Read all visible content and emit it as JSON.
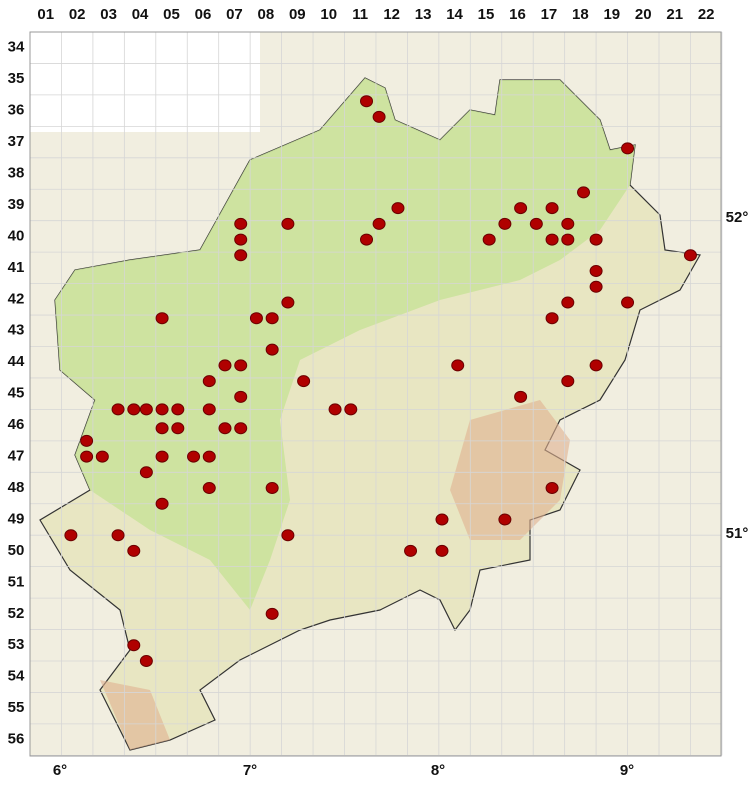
{
  "map": {
    "columns": [
      "01",
      "02",
      "03",
      "04",
      "05",
      "06",
      "07",
      "08",
      "09",
      "10",
      "11",
      "12",
      "13",
      "14",
      "15",
      "16",
      "17",
      "18",
      "19",
      "20",
      "21",
      "22"
    ],
    "rows": [
      "34",
      "35",
      "36",
      "37",
      "38",
      "39",
      "40",
      "41",
      "42",
      "43",
      "44",
      "45",
      "46",
      "47",
      "48",
      "49",
      "50",
      "51",
      "52",
      "53",
      "54",
      "55",
      "56"
    ],
    "longitudes": [
      "6°",
      "7°",
      "8°",
      "9°"
    ],
    "latitudes": [
      "52°",
      "51°"
    ],
    "points": [
      [
        11.2,
        35.7
      ],
      [
        11.6,
        36.2
      ],
      [
        19.5,
        37.2
      ],
      [
        18.1,
        38.6
      ],
      [
        12.2,
        39.1
      ],
      [
        7.2,
        39.6
      ],
      [
        8.7,
        39.6
      ],
      [
        11.6,
        39.6
      ],
      [
        15.6,
        39.6
      ],
      [
        16.1,
        39.1
      ],
      [
        16.6,
        39.6
      ],
      [
        17.1,
        39.1
      ],
      [
        17.6,
        39.6
      ],
      [
        7.2,
        40.1
      ],
      [
        11.2,
        40.1
      ],
      [
        15.1,
        40.1
      ],
      [
        17.1,
        40.1
      ],
      [
        17.6,
        40.1
      ],
      [
        18.5,
        40.1
      ],
      [
        7.2,
        40.6
      ],
      [
        21.5,
        40.6
      ],
      [
        18.5,
        41.1
      ],
      [
        18.5,
        41.6
      ],
      [
        8.7,
        42.1
      ],
      [
        17.6,
        42.1
      ],
      [
        19.5,
        42.1
      ],
      [
        4.7,
        42.6
      ],
      [
        7.7,
        42.6
      ],
      [
        8.2,
        42.6
      ],
      [
        17.1,
        42.6
      ],
      [
        8.2,
        43.6
      ],
      [
        6.7,
        44.1
      ],
      [
        7.2,
        44.1
      ],
      [
        14.1,
        44.1
      ],
      [
        18.5,
        44.1
      ],
      [
        6.2,
        44.6
      ],
      [
        9.2,
        44.6
      ],
      [
        17.6,
        44.6
      ],
      [
        7.2,
        45.1
      ],
      [
        16.1,
        45.1
      ],
      [
        3.3,
        45.5
      ],
      [
        3.8,
        45.5
      ],
      [
        4.2,
        45.5
      ],
      [
        4.7,
        45.5
      ],
      [
        5.2,
        45.5
      ],
      [
        6.2,
        45.5
      ],
      [
        10.2,
        45.5
      ],
      [
        10.7,
        45.5
      ],
      [
        4.7,
        46.1
      ],
      [
        5.2,
        46.1
      ],
      [
        6.7,
        46.1
      ],
      [
        7.2,
        46.1
      ],
      [
        2.3,
        46.5
      ],
      [
        2.3,
        47.0
      ],
      [
        2.8,
        47.0
      ],
      [
        4.7,
        47.0
      ],
      [
        5.7,
        47.0
      ],
      [
        6.2,
        47.0
      ],
      [
        4.2,
        47.5
      ],
      [
        6.2,
        48.0
      ],
      [
        8.2,
        48.0
      ],
      [
        17.1,
        48.0
      ],
      [
        4.7,
        48.5
      ],
      [
        13.6,
        49.0
      ],
      [
        15.6,
        49.0
      ],
      [
        1.8,
        49.5
      ],
      [
        3.3,
        49.5
      ],
      [
        8.7,
        49.5
      ],
      [
        3.8,
        50.0
      ],
      [
        12.6,
        50.0
      ],
      [
        13.6,
        50.0
      ],
      [
        8.2,
        52.0
      ],
      [
        3.8,
        53.0
      ],
      [
        4.2,
        53.5
      ]
    ]
  }
}
